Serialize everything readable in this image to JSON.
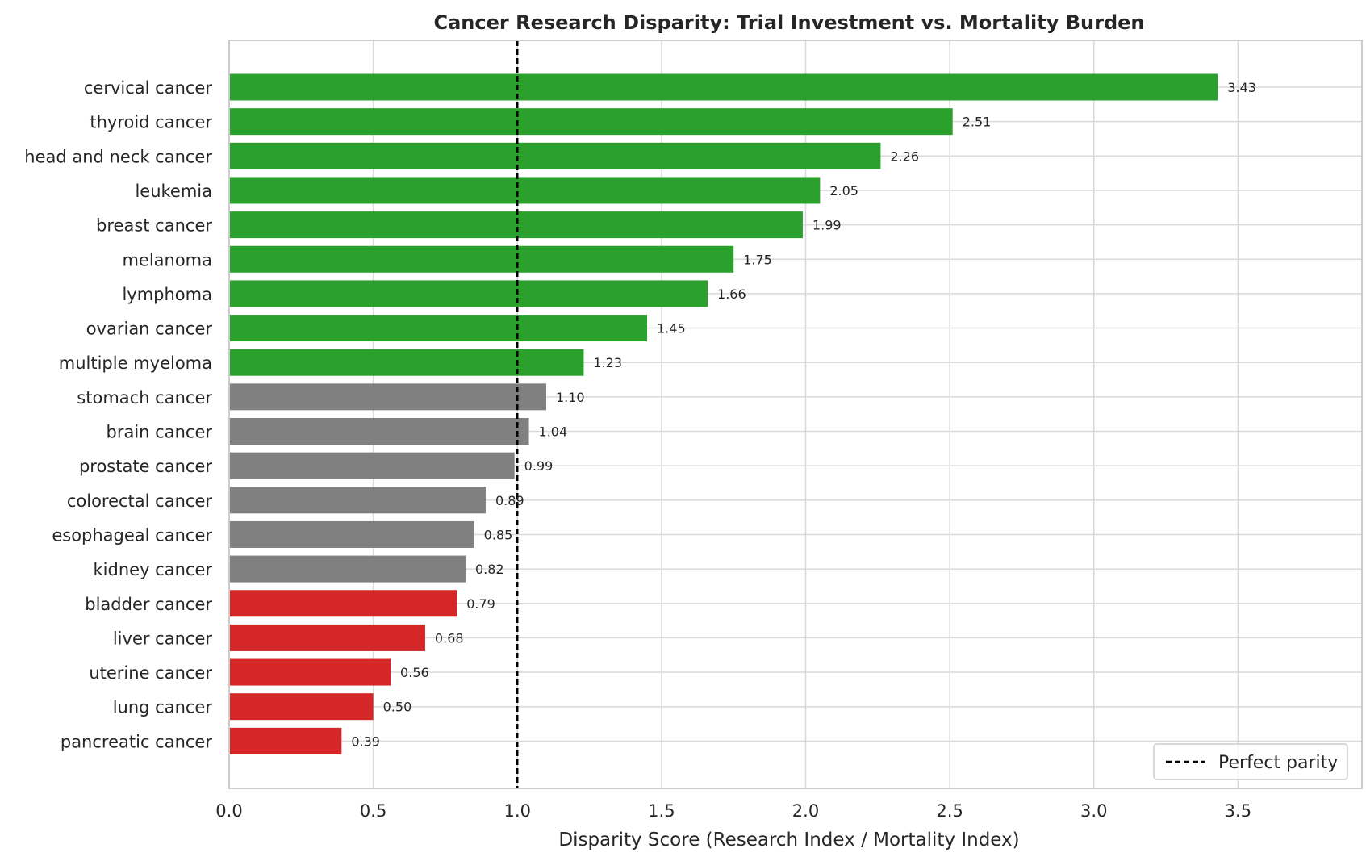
{
  "chart_data": {
    "type": "bar",
    "orientation": "horizontal",
    "title": "Cancer Research Disparity: Trial Investment vs. Mortality Burden",
    "xlabel": "Disparity Score (Research Index / Mortality Index)",
    "ylabel": "",
    "xlim": [
      0,
      3.93
    ],
    "xticks": [
      "0.0",
      "0.5",
      "1.0",
      "1.5",
      "2.0",
      "2.5",
      "3.0",
      "3.5"
    ],
    "grid": true,
    "reference_line": {
      "x": 1.0,
      "style": "dashed",
      "color": "#000000",
      "label": "Perfect parity"
    },
    "legend": {
      "position": "bottom-right",
      "entries": [
        "Perfect parity"
      ]
    },
    "colors": {
      "above": "#2ca02c",
      "neutral": "#808080",
      "below": "#d62728"
    },
    "categories": [
      "cervical cancer",
      "thyroid cancer",
      "head and neck cancer",
      "leukemia",
      "breast cancer",
      "melanoma",
      "lymphoma",
      "ovarian cancer",
      "multiple myeloma",
      "stomach cancer",
      "brain cancer",
      "prostate cancer",
      "colorectal cancer",
      "esophageal cancer",
      "kidney cancer",
      "bladder cancer",
      "liver cancer",
      "uterine cancer",
      "lung cancer",
      "pancreatic cancer"
    ],
    "values": [
      3.43,
      2.51,
      2.26,
      2.05,
      1.99,
      1.75,
      1.66,
      1.45,
      1.23,
      1.1,
      1.04,
      0.99,
      0.89,
      0.85,
      0.82,
      0.79,
      0.68,
      0.56,
      0.5,
      0.39
    ],
    "value_labels": [
      "3.43",
      "2.51",
      "2.26",
      "2.05",
      "1.99",
      "1.75",
      "1.66",
      "1.45",
      "1.23",
      "1.10",
      "1.04",
      "0.99",
      "0.89",
      "0.85",
      "0.82",
      "0.79",
      "0.68",
      "0.56",
      "0.50",
      "0.39"
    ],
    "color_groups": [
      "above",
      "above",
      "above",
      "above",
      "above",
      "above",
      "above",
      "above",
      "above",
      "neutral",
      "neutral",
      "neutral",
      "neutral",
      "neutral",
      "neutral",
      "below",
      "below",
      "below",
      "below",
      "below"
    ]
  }
}
